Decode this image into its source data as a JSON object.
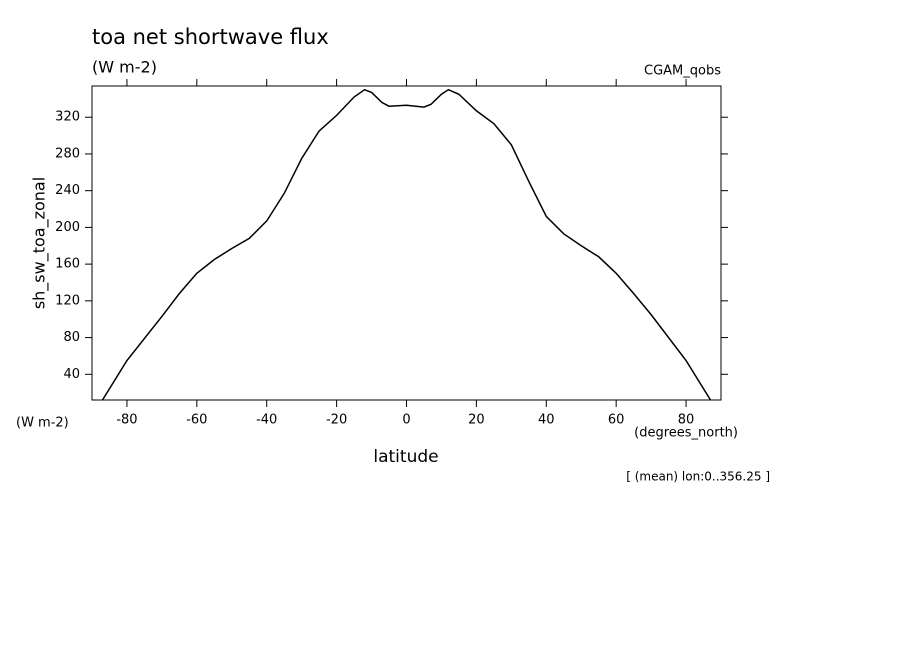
{
  "chart_data": {
    "type": "line",
    "title": "toa net shortwave flux",
    "subtitle": "(W m-2)",
    "dataset": "CGAM_qobs",
    "y_label": "sh_sw_toa_zonal",
    "y_units": "(W m-2)",
    "x_units": "(degrees_north)",
    "x_label": "latitude",
    "annotation": "[ (mean) lon:0..356.25 ]",
    "x": [
      -87,
      -80,
      -70,
      -65,
      -60,
      -55,
      -50,
      -45,
      -40,
      -35,
      -30,
      -25,
      -20,
      -15,
      -12,
      -10,
      -7,
      -5,
      0,
      5,
      7,
      10,
      12,
      15,
      20,
      25,
      30,
      35,
      40,
      45,
      50,
      55,
      60,
      65,
      70,
      80,
      87
    ],
    "series": [
      {
        "name": "sh_sw_toa_zonal",
        "color": "#000000",
        "values": [
          12,
          55,
          103,
          128,
          150,
          165,
          177,
          188,
          207,
          237,
          275,
          305,
          322,
          342,
          350,
          347,
          336,
          332,
          333,
          331,
          334,
          345,
          350,
          345,
          327,
          313,
          290,
          250,
          212,
          193,
          180,
          168,
          150,
          128,
          105,
          55,
          12
        ]
      }
    ],
    "xlim": [
      -90,
      90
    ],
    "ylim": [
      12,
      354
    ],
    "xticks": [
      -80,
      -60,
      -40,
      -20,
      0,
      20,
      40,
      60,
      80
    ],
    "yticks": [
      40,
      80,
      120,
      160,
      200,
      240,
      280,
      320
    ]
  }
}
